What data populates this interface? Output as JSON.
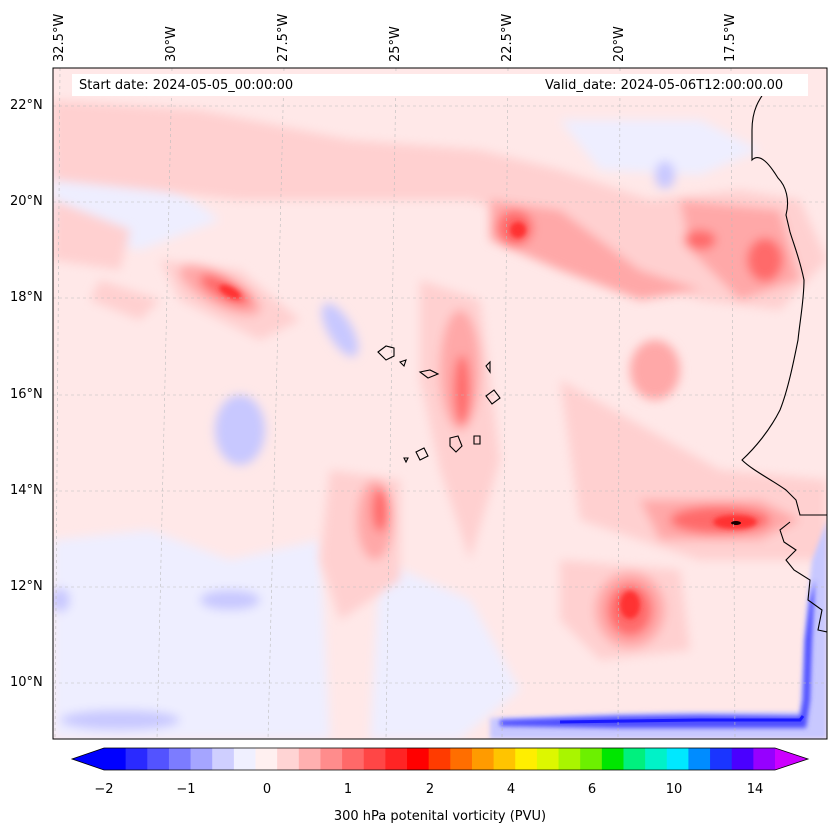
{
  "header": {
    "start_date": "Start date: 2024-05-05_00:00:00",
    "valid_date": "Valid_date: 2024-05-06T12:00:00.00"
  },
  "longitude_labels": [
    "32.5°W",
    "30°W",
    "27.5°W",
    "25°W",
    "22.5°W",
    "20°W",
    "17.5°W"
  ],
  "latitude_labels": [
    "22°N",
    "20°N",
    "18°N",
    "16°N",
    "14°N",
    "12°N",
    "10°N"
  ],
  "colorbar": {
    "label": "300 hPa potenital vorticity (PVU)",
    "ticks": [
      "−2",
      "−1",
      "0",
      "1",
      "2",
      "4",
      "6",
      "10",
      "14"
    ],
    "colors": [
      "#0000ff",
      "#2a2aff",
      "#5353ff",
      "#7c7cff",
      "#a5a5ff",
      "#cfcfff",
      "#f0f0ff",
      "#fff0f0",
      "#ffd4d4",
      "#ffb0b0",
      "#ff8c8c",
      "#ff6969",
      "#ff4646",
      "#ff2424",
      "#ff0000",
      "#ff3b00",
      "#ff6e00",
      "#ff9b00",
      "#ffc400",
      "#ffee00",
      "#ddf700",
      "#a9f500",
      "#6cf000",
      "#00e600",
      "#00f07e",
      "#00f2c8",
      "#00e8ff",
      "#008cff",
      "#1a35ff",
      "#4a00ff",
      "#9600ff"
    ],
    "under_color": "#0000ff",
    "over_color": "#cc00ff"
  },
  "field_colors": {
    "background": "#ffe8e8",
    "weak_negative": "#eeeeff",
    "negative": "#c8c8ff",
    "strong_negative": "#5050ff",
    "weak_positive": "#ffd0d0",
    "positive": "#ffa8a8",
    "strong_positive": "#ff6a6a",
    "peak": "#ff3030"
  }
}
